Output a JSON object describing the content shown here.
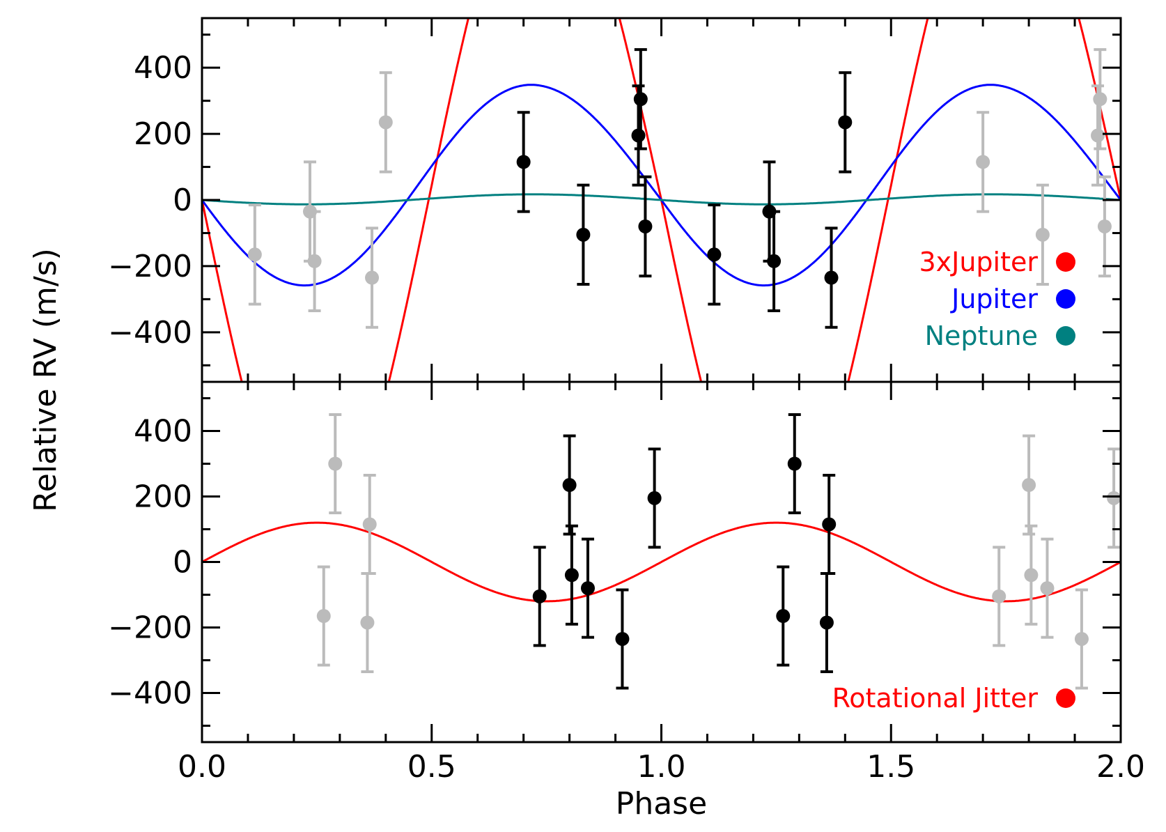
{
  "chart_data": [
    {
      "type": "scatter",
      "panel": "top",
      "xlabel": "",
      "ylabel": "Relative RV (m/s)",
      "xlim": [
        0.0,
        2.0
      ],
      "ylim": [
        -550,
        550
      ],
      "y_ticks": [
        {
          "value": 400,
          "label": "400"
        },
        {
          "value": 200,
          "label": "200"
        },
        {
          "value": 0,
          "label": "0"
        },
        {
          "value": -200,
          "label": "−200"
        },
        {
          "value": -400,
          "label": "−400"
        }
      ],
      "model_curves": [
        {
          "name": "3xJupiter",
          "color": "#ff0000",
          "shape": "skewed-sine",
          "amplitude": 1050,
          "offset": 0,
          "phase0": 0.0,
          "peak_phase": 0.74,
          "period": 1.0
        },
        {
          "name": "Jupiter",
          "color": "#0000ff",
          "shape": "skewed-sine",
          "amplitude": 300,
          "offset": 45,
          "phase0": 0.0,
          "peak_phase": 0.74,
          "period": 1.0
        },
        {
          "name": "Neptune",
          "color": "#008080",
          "shape": "skewed-sine",
          "amplitude": 15,
          "offset": 2,
          "phase0": 0.0,
          "peak_phase": 0.74,
          "period": 1.0
        }
      ],
      "legend": {
        "position": "bottom-right",
        "entries": [
          {
            "label": "3xJupiter",
            "color": "#ff0000"
          },
          {
            "label": "Jupiter",
            "color": "#0000ff"
          },
          {
            "label": "Neptune",
            "color": "#008080"
          }
        ]
      },
      "points_primary": {
        "color": "#000000",
        "x": [
          0.7,
          0.83,
          0.95,
          0.955,
          0.965,
          1.115,
          1.235,
          1.245,
          1.37,
          1.4
        ],
        "y": [
          115,
          -105,
          195,
          305,
          -80,
          -165,
          -35,
          -185,
          -235,
          235
        ],
        "err": [
          150,
          150,
          150,
          150,
          150,
          150,
          150,
          150,
          150,
          150
        ]
      },
      "points_repeat": {
        "color": "#bbbbbb",
        "x": [
          0.115,
          0.235,
          0.245,
          0.37,
          0.4,
          1.7,
          1.83,
          1.95,
          1.955,
          1.965
        ],
        "y": [
          -165,
          -35,
          -185,
          -235,
          235,
          115,
          -105,
          195,
          305,
          -80
        ],
        "err": [
          150,
          150,
          150,
          150,
          150,
          150,
          150,
          150,
          150,
          150
        ]
      }
    },
    {
      "type": "scatter",
      "panel": "bottom",
      "xlabel": "Phase",
      "ylabel": "",
      "xlim": [
        0.0,
        2.0
      ],
      "ylim": [
        -550,
        550
      ],
      "x_ticks": [
        {
          "value": 0.0,
          "label": "0.0"
        },
        {
          "value": 0.5,
          "label": "0.5"
        },
        {
          "value": 1.0,
          "label": "1.0"
        },
        {
          "value": 1.5,
          "label": "1.5"
        },
        {
          "value": 2.0,
          "label": "2.0"
        }
      ],
      "y_ticks": [
        {
          "value": 400,
          "label": "400"
        },
        {
          "value": 200,
          "label": "200"
        },
        {
          "value": 0,
          "label": "0"
        },
        {
          "value": -200,
          "label": "−200"
        },
        {
          "value": -400,
          "label": "−400"
        }
      ],
      "model_curves": [
        {
          "name": "Rotational Jitter",
          "color": "#ff0000",
          "shape": "sine",
          "amplitude": 120,
          "offset": 0,
          "phase0": 0.0,
          "period": 1.0
        }
      ],
      "legend": {
        "position": "bottom-right",
        "entries": [
          {
            "label": "Rotational Jitter",
            "color": "#ff0000"
          }
        ]
      },
      "points_primary": {
        "color": "#000000",
        "x": [
          0.735,
          0.8,
          0.805,
          0.84,
          0.915,
          0.985,
          1.265,
          1.29,
          1.36,
          1.365
        ],
        "y": [
          -105,
          235,
          -40,
          -80,
          -235,
          195,
          -165,
          300,
          -185,
          115
        ],
        "err": [
          150,
          150,
          150,
          150,
          150,
          150,
          150,
          150,
          150,
          150
        ]
      },
      "points_repeat": {
        "color": "#bbbbbb",
        "x": [
          0.265,
          0.29,
          0.36,
          0.365,
          1.735,
          1.8,
          1.805,
          1.84,
          1.915,
          1.985
        ],
        "y": [
          -165,
          300,
          -185,
          115,
          -105,
          235,
          -40,
          -80,
          -235,
          195
        ],
        "err": [
          150,
          150,
          150,
          150,
          150,
          150,
          150,
          150,
          150,
          150
        ]
      }
    }
  ]
}
